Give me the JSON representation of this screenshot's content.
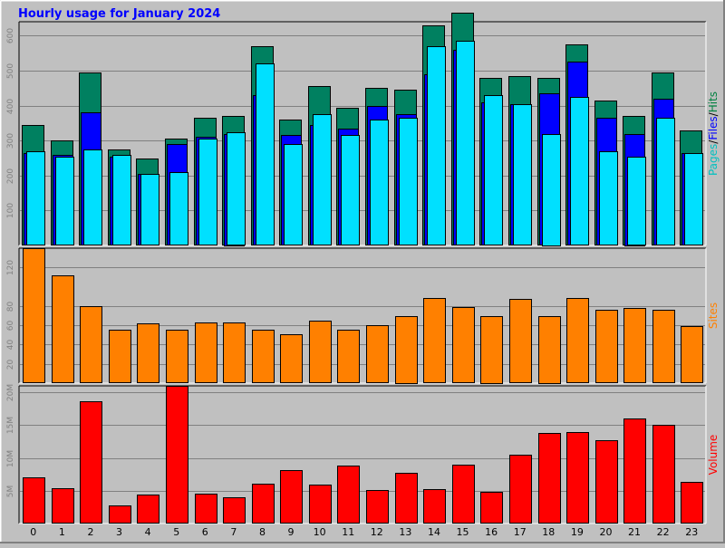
{
  "title": "Hourly usage for January 2024",
  "chart_data": [
    {
      "type": "bar",
      "panel": "pages-files-hits",
      "categories": [
        "0",
        "1",
        "2",
        "3",
        "4",
        "5",
        "6",
        "7",
        "8",
        "9",
        "10",
        "11",
        "12",
        "13",
        "14",
        "15",
        "16",
        "17",
        "18",
        "19",
        "20",
        "21",
        "22",
        "23"
      ],
      "ylim": [
        0,
        640
      ],
      "yticks": [
        100,
        200,
        300,
        400,
        500,
        600
      ],
      "axis_label_parts": [
        {
          "text": "Pages",
          "color": "#00c0c0"
        },
        {
          "text": "/",
          "color": "#000000"
        },
        {
          "text": "Files",
          "color": "#0000ff"
        },
        {
          "text": "/",
          "color": "#000000"
        },
        {
          "text": "Hits",
          "color": "#008040"
        }
      ],
      "series": [
        {
          "name": "Hits",
          "color": "#008060",
          "values": [
            345,
            300,
            495,
            275,
            250,
            305,
            365,
            370,
            570,
            360,
            455,
            395,
            450,
            445,
            630,
            665,
            480,
            485,
            480,
            575,
            415,
            370,
            495,
            330
          ]
        },
        {
          "name": "Files",
          "color": "#0000ff",
          "values": [
            265,
            260,
            380,
            255,
            205,
            290,
            310,
            320,
            430,
            315,
            345,
            335,
            400,
            375,
            490,
            560,
            410,
            405,
            435,
            525,
            365,
            320,
            420,
            265
          ]
        },
        {
          "name": "Pages",
          "color": "#00e0ff",
          "values": [
            270,
            255,
            275,
            260,
            205,
            210,
            305,
            325,
            520,
            290,
            375,
            315,
            360,
            365,
            570,
            585,
            430,
            405,
            320,
            425,
            270,
            255,
            365,
            265
          ]
        }
      ]
    },
    {
      "type": "bar",
      "panel": "sites",
      "categories": [
        "0",
        "1",
        "2",
        "3",
        "4",
        "5",
        "6",
        "7",
        "8",
        "9",
        "10",
        "11",
        "12",
        "13",
        "14",
        "15",
        "16",
        "17",
        "18",
        "19",
        "20",
        "21",
        "22",
        "23"
      ],
      "ylim": [
        0,
        140
      ],
      "yticks": [
        20,
        40,
        60,
        80,
        120
      ],
      "ylabel": "Sites",
      "label_color": "#ff8000",
      "series": [
        {
          "name": "Sites",
          "color": "#ff8000",
          "values": [
            140,
            112,
            80,
            55,
            62,
            55,
            63,
            63,
            55,
            51,
            65,
            55,
            60,
            70,
            88,
            79,
            70,
            87,
            70,
            88,
            76,
            78,
            76,
            59
          ]
        }
      ]
    },
    {
      "type": "bar",
      "panel": "volume",
      "categories": [
        "0",
        "1",
        "2",
        "3",
        "4",
        "5",
        "6",
        "7",
        "8",
        "9",
        "10",
        "11",
        "12",
        "13",
        "14",
        "15",
        "16",
        "17",
        "18",
        "19",
        "20",
        "21",
        "22",
        "23"
      ],
      "ylim": [
        0,
        21
      ],
      "yticks": [
        5,
        10,
        15,
        20
      ],
      "ytick_labels": [
        "5M",
        "10M",
        "15M",
        "20M"
      ],
      "unit": "MB",
      "ylabel": "Volume",
      "label_color": "#ff0000",
      "series": [
        {
          "name": "Volume",
          "color": "#ff0000",
          "values": [
            7.1,
            5.4,
            18.6,
            2.7,
            4.4,
            21.0,
            4.6,
            4.0,
            6.1,
            8.1,
            6.0,
            8.9,
            5.1,
            7.7,
            5.3,
            9.0,
            4.9,
            10.5,
            13.8,
            14.0,
            12.7,
            16.0,
            15.1,
            6.4
          ]
        }
      ]
    }
  ]
}
